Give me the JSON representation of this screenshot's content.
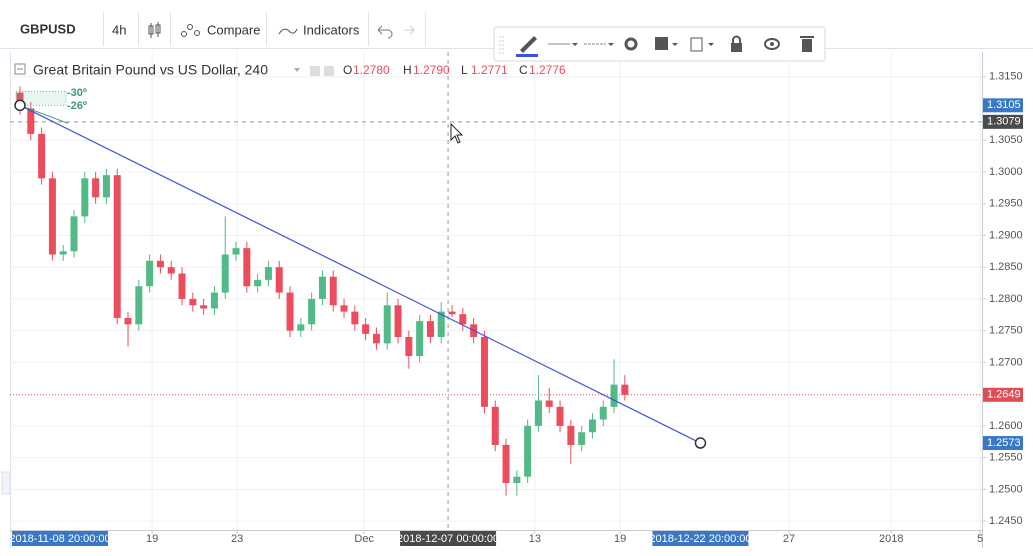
{
  "toolbar": {
    "symbol": "GBPUSD",
    "interval": "4h",
    "compare": "Compare",
    "indicators": "Indicators"
  },
  "legend": {
    "title": "Great Britain Pound vs US Dollar, 240",
    "o_label": "O",
    "o": "1.2780",
    "h_label": "H",
    "h": "1.2790",
    "l_label": "L",
    "l": "1.2771",
    "c_label": "C",
    "c": "1.2776"
  },
  "chart_data": {
    "type": "candlestick",
    "up_color": "#53b987",
    "down_color": "#eb4d5c",
    "x": [
      0,
      3,
      6,
      9,
      12,
      15,
      18,
      21,
      24,
      27,
      30,
      33,
      36,
      39,
      42,
      45,
      48,
      51,
      54,
      57,
      60,
      63,
      66,
      69,
      72,
      75,
      78,
      81,
      84,
      87,
      90,
      93,
      96,
      99,
      102,
      105,
      108,
      111,
      114,
      117,
      120,
      123,
      126,
      129,
      132,
      135,
      138,
      141,
      144,
      147,
      150,
      153,
      156,
      159,
      162,
      165,
      168
    ],
    "open": [
      1.3125,
      1.31,
      1.306,
      1.299,
      1.287,
      1.2875,
      1.293,
      1.299,
      1.296,
      1.2995,
      1.277,
      1.276,
      1.282,
      1.286,
      1.285,
      1.284,
      1.28,
      1.279,
      1.2785,
      1.281,
      1.287,
      1.288,
      1.282,
      1.283,
      1.285,
      1.281,
      1.275,
      1.276,
      1.28,
      1.2835,
      1.279,
      1.278,
      1.276,
      1.2745,
      1.273,
      1.279,
      1.274,
      1.271,
      1.2765,
      1.274,
      1.278,
      1.2776,
      1.276,
      1.274,
      1.263,
      1.257,
      1.251,
      1.252,
      1.26,
      1.264,
      1.263,
      1.26,
      1.257,
      1.259,
      1.261,
      1.263,
      1.2665
    ],
    "high": [
      1.3135,
      1.311,
      1.307,
      1.3,
      1.2885,
      1.294,
      1.3,
      1.3,
      1.3005,
      1.3005,
      1.278,
      1.283,
      1.287,
      1.287,
      1.286,
      1.285,
      1.281,
      1.28,
      1.282,
      1.293,
      1.289,
      1.289,
      1.284,
      1.286,
      1.286,
      1.282,
      1.277,
      1.281,
      1.2845,
      1.2845,
      1.28,
      1.279,
      1.277,
      1.2755,
      1.281,
      1.28,
      1.275,
      1.2775,
      1.2775,
      1.2795,
      1.279,
      1.2786,
      1.277,
      1.275,
      1.264,
      1.258,
      1.253,
      1.261,
      1.268,
      1.266,
      1.264,
      1.261,
      1.26,
      1.262,
      1.264,
      1.2705,
      1.268
    ],
    "low": [
      1.309,
      1.305,
      1.298,
      1.286,
      1.286,
      1.2865,
      1.292,
      1.295,
      1.295,
      1.276,
      1.2725,
      1.275,
      1.281,
      1.284,
      1.283,
      1.279,
      1.278,
      1.2775,
      1.2775,
      1.28,
      1.286,
      1.281,
      1.281,
      1.282,
      1.28,
      1.274,
      1.274,
      1.275,
      1.279,
      1.278,
      1.277,
      1.275,
      1.2735,
      1.272,
      1.272,
      1.273,
      1.269,
      1.27,
      1.273,
      1.273,
      1.2771,
      1.275,
      1.273,
      1.262,
      1.256,
      1.249,
      1.249,
      1.251,
      1.259,
      1.262,
      1.259,
      1.254,
      1.256,
      1.258,
      1.26,
      1.262,
      1.264
    ],
    "close": [
      1.31,
      1.306,
      1.299,
      1.287,
      1.2875,
      1.293,
      1.299,
      1.296,
      1.2995,
      1.277,
      1.276,
      1.282,
      1.286,
      1.285,
      1.284,
      1.28,
      1.279,
      1.2785,
      1.281,
      1.287,
      1.288,
      1.282,
      1.283,
      1.285,
      1.281,
      1.275,
      1.276,
      1.28,
      1.2835,
      1.279,
      1.278,
      1.276,
      1.2745,
      1.273,
      1.279,
      1.274,
      1.271,
      1.2765,
      1.274,
      1.278,
      1.2776,
      1.276,
      1.274,
      1.263,
      1.257,
      1.251,
      1.252,
      1.26,
      1.264,
      1.263,
      1.26,
      1.257,
      1.259,
      1.261,
      1.263,
      1.2665,
      1.2649
    ],
    "xlim": [
      -2.78,
      267.2
    ],
    "ylim": [
      1.2436,
      1.3189
    ],
    "yticks": [
      {
        "value": 1.315,
        "label": "1.3150"
      },
      {
        "value": 1.305,
        "label": "1.3050"
      },
      {
        "value": 1.3,
        "label": "1.3000"
      },
      {
        "value": 1.295,
        "label": "1.2950"
      },
      {
        "value": 1.29,
        "label": "1.2900"
      },
      {
        "value": 1.285,
        "label": "1.2850"
      },
      {
        "value": 1.28,
        "label": "1.2800"
      },
      {
        "value": 1.275,
        "label": "1.2750"
      },
      {
        "value": 1.27,
        "label": "1.2700"
      },
      {
        "value": 1.26,
        "label": "1.2600"
      },
      {
        "value": 1.255,
        "label": "1.2550"
      },
      {
        "value": 1.25,
        "label": "1.2500"
      },
      {
        "value": 1.245,
        "label": "1.2450"
      }
    ],
    "xticks": [
      {
        "value": 36.7,
        "label": "19"
      },
      {
        "value": 60.3,
        "label": "23"
      },
      {
        "value": 95.6,
        "label": "Dec"
      },
      {
        "value": 143,
        "label": "13"
      },
      {
        "value": 166.7,
        "label": "19"
      },
      {
        "value": 213.6,
        "label": "27"
      },
      {
        "value": 242,
        "label": "2018"
      },
      {
        "value": 266.7,
        "label": "5"
      }
    ],
    "grid": true,
    "trend_line": {
      "x": [
        0,
        189
      ],
      "y": [
        1.3105,
        1.2573
      ],
      "x_labels": [
        "2018-11-08 20:00:00",
        "2018-12-22 20:00:00"
      ],
      "color": "#3f51e0",
      "angles": [
        "-30º",
        "-26º"
      ]
    },
    "crosshair": {
      "x": {
        "value": 118.9,
        "label": "2018-12-07 00:00:00"
      },
      "y": 1.3079
    },
    "last_price": 1.2649
  }
}
